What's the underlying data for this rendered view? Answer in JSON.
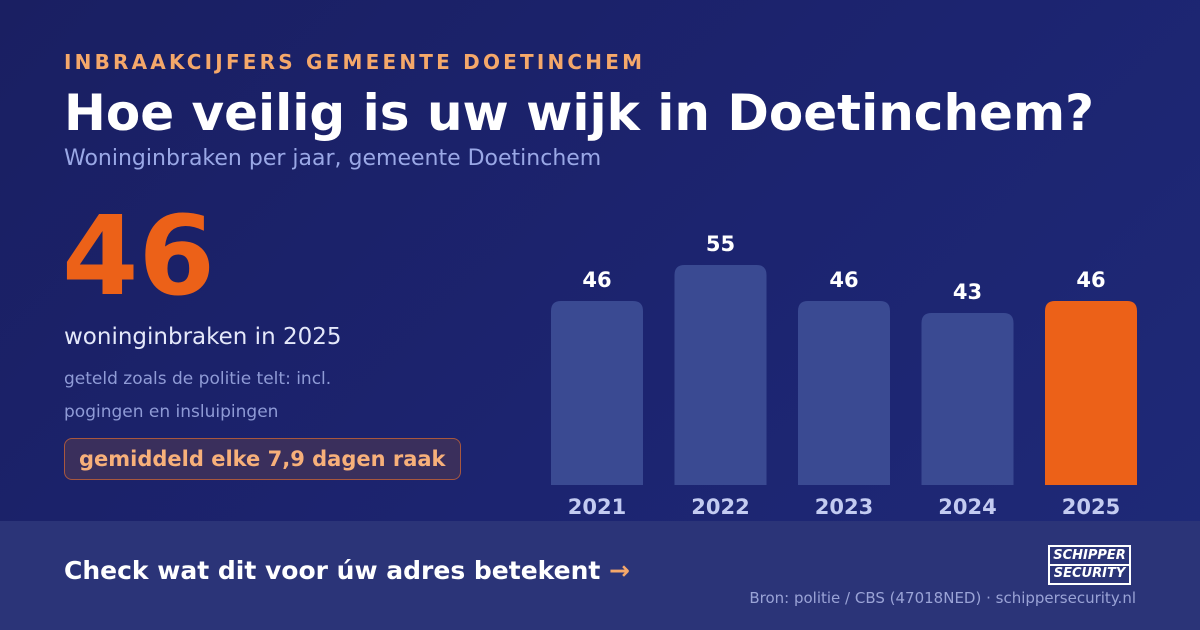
{
  "header": {
    "eyebrow": "INBRAAKCIJFERS GEMEENTE DOETINCHEM",
    "title": "Hoe veilig is uw wijk in Doetinchem?",
    "subtitle": "Woninginbraken per jaar, gemeente Doetinchem"
  },
  "highlight": {
    "number": "46",
    "caption": "woninginbraken in 2025",
    "note": "geteld zoals de politie telt: incl. pogingen en insluipingen",
    "badge": "gemiddeld elke 7,9 dagen raak"
  },
  "footer": {
    "cta": "Check wat dit voor úw adres betekent",
    "cta_arrow": "→",
    "source": "Bron: politie / CBS (47018NED) · schippersecurity.nl",
    "logo_line1": "SCHIPPER",
    "logo_line2": "SECURITY"
  },
  "colors": {
    "bar": "#3a4a92",
    "highlight_bar": "#ec6118",
    "value_label": "#ffffff",
    "year_label": "#c3cbf1"
  },
  "chart_data": {
    "type": "bar",
    "categories": [
      "2021",
      "2022",
      "2023",
      "2024",
      "2025"
    ],
    "values": [
      46,
      55,
      46,
      43,
      46
    ],
    "highlight_index": 4,
    "ylim": [
      0,
      55
    ],
    "grid": false,
    "legend": "none",
    "title": "",
    "xlabel": "",
    "ylabel": ""
  }
}
